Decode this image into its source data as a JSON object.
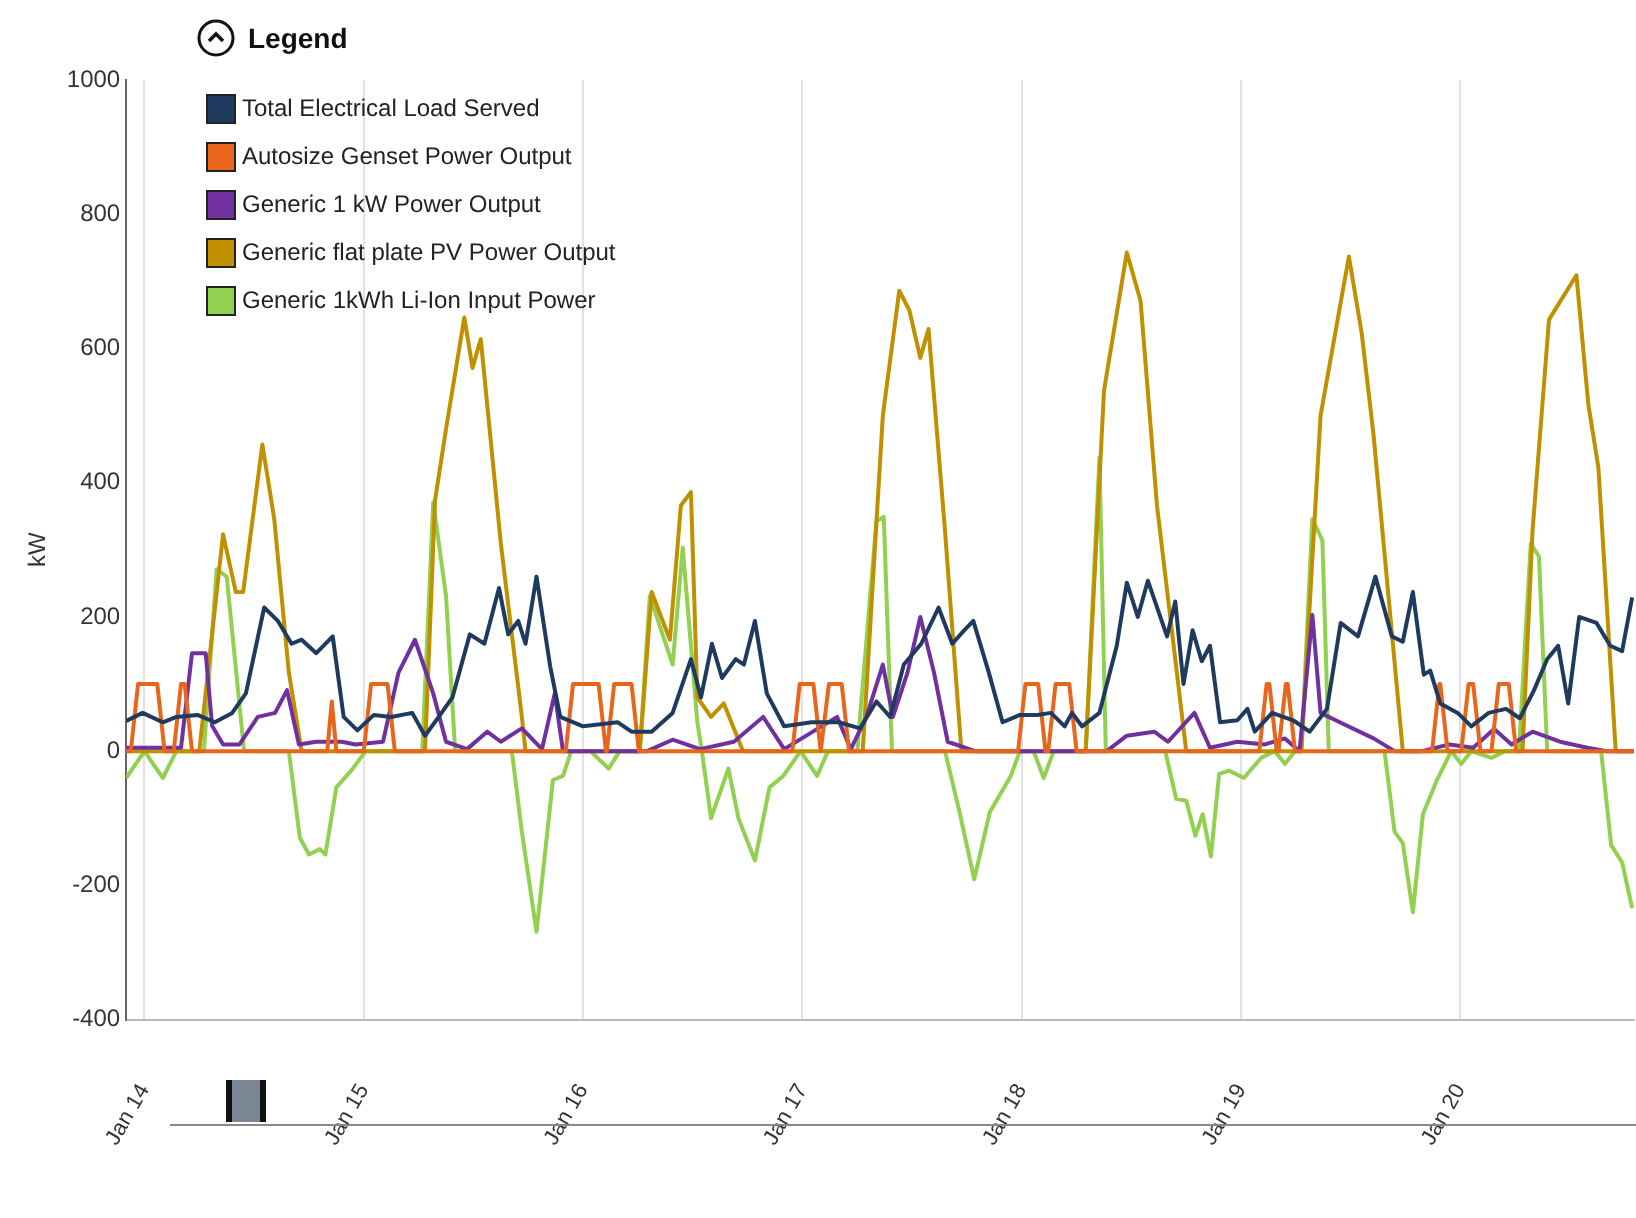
{
  "chart_data": {
    "type": "line",
    "ylabel": "kW",
    "legend_title": "Legend",
    "legend": "top left",
    "grid": "x",
    "marker": "none",
    "line_style": "solid",
    "xlim": [
      "--01-13T22:00",
      "--01-20T19:00"
    ],
    "ylim": [
      -400,
      1000
    ],
    "yticks": [
      -400,
      -200,
      0,
      200,
      400,
      600,
      800,
      1000
    ],
    "xticks": [
      {
        "value": "--01-14",
        "label": "Jan 14"
      },
      {
        "value": "--01-15",
        "label": "Jan 15"
      },
      {
        "value": "--01-16",
        "label": "Jan 16"
      },
      {
        "value": "--01-17",
        "label": "Jan 17"
      },
      {
        "value": "--01-18",
        "label": "Jan 18"
      },
      {
        "value": "--01-19",
        "label": "Jan 19"
      },
      {
        "value": "--01-20",
        "label": "Jan 20"
      }
    ],
    "series": [
      {
        "name": "Total Electrical Load Served",
        "color": "#1f3a5f",
        "x": [
          "--01-13T22:00",
          "--01-13T23:48",
          "--01-14T02:00",
          "--01-14T03:30",
          "--01-14T05:48",
          "--01-14T07:42",
          "--01-14T09:36",
          "--01-14T11:06",
          "--01-14T13:06",
          "--01-14T14:36",
          "--01-14T16:06",
          "--01-14T17:12",
          "--01-14T18:48",
          "--01-14T20:36",
          "--01-14T21:48",
          "--01-14T23:18",
          "--01-15T01:06",
          "--01-15T03:00",
          "--01-15T05:18",
          "--01-15T06:42",
          "--01-15T08:12",
          "--01-15T09:42",
          "--01-15T11:36",
          "--01-15T13:12",
          "--01-15T14:48",
          "--01-15T15:48",
          "--01-15T16:54",
          "--01-15T17:42",
          "--01-15T18:54",
          "--01-15T20:24",
          "--01-15T21:30",
          "--01-16T00:00",
          "--01-16T03:48",
          "--01-16T05:18",
          "--01-16T07:30",
          "--01-16T09:48",
          "--01-16T11:48",
          "--01-16T12:54",
          "--01-16T14:06",
          "--01-16T15:12",
          "--01-16T16:42",
          "--01-16T17:36",
          "--01-16T18:48",
          "--01-16T20:06",
          "--01-16T22:00",
          "--01-17T01:00",
          "--01-17T04:00",
          "--01-17T06:18",
          "--01-17T08:06",
          "--01-17T09:36",
          "--01-17T11:06",
          "--01-17T13:00",
          "--01-17T14:54",
          "--01-17T16:24",
          "--01-17T17:42",
          "--01-17T18:42",
          "--01-17T20:24",
          "--01-17T21:54",
          "--01-17T23:48",
          "--01-18T01:42",
          "--01-18T03:12",
          "--01-18T04:42",
          "--01-18T05:30",
          "--01-18T06:36",
          "--01-18T08:30",
          "--01-18T10:24",
          "--01-18T11:30",
          "--01-18T12:42",
          "--01-18T13:48",
          "--01-18T15:54",
          "--01-18T16:48",
          "--01-18T17:42",
          "--01-18T18:42",
          "--01-18T19:42",
          "--01-18T20:36",
          "--01-18T21:42",
          "--01-18T23:36",
          "--01-19T00:42",
          "--01-19T01:30",
          "--01-19T03:24",
          "--01-19T05:42",
          "--01-19T07:30",
          "--01-19T09:24",
          "--01-19T10:54",
          "--01-19T12:48",
          "--01-19T14:42",
          "--01-19T16:30",
          "--01-19T17:42",
          "--01-19T18:48",
          "--01-19T20:00",
          "--01-19T20:42",
          "--01-19T21:48",
          "--01-19T23:42",
          "--01-20T01:12",
          "--01-20T03:06",
          "--01-20T05:00",
          "--01-20T06:30",
          "--01-20T08:00",
          "--01-20T09:30",
          "--01-20T10:42",
          "--01-20T11:48",
          "--01-20T13:00",
          "--01-20T14:54",
          "--01-20T16:24",
          "--01-20T17:42",
          "--01-20T18:48"
        ],
        "values": [
          45,
          57,
          43,
          51,
          54,
          43,
          57,
          86,
          214,
          194,
          160,
          166,
          146,
          171,
          51,
          31,
          54,
          51,
          57,
          23,
          51,
          80,
          174,
          160,
          243,
          174,
          194,
          160,
          260,
          126,
          51,
          37,
          43,
          29,
          29,
          57,
          137,
          80,
          160,
          109,
          137,
          129,
          194,
          86,
          37,
          43,
          43,
          34,
          74,
          51,
          129,
          160,
          214,
          160,
          180,
          194,
          117,
          43,
          54,
          54,
          57,
          37,
          57,
          37,
          57,
          157,
          251,
          200,
          254,
          171,
          223,
          100,
          180,
          134,
          157,
          43,
          46,
          63,
          29,
          57,
          46,
          29,
          63,
          191,
          171,
          260,
          171,
          163,
          237,
          114,
          120,
          71,
          57,
          37,
          57,
          63,
          49,
          89,
          137,
          157,
          71,
          200,
          191,
          157,
          149,
          229
        ]
      },
      {
        "name": "Autosize Genset Power Output",
        "color": "#e8661c",
        "x": [
          "--01-13T22:00",
          "--01-13T22:30",
          "--01-13T23:18",
          "--01-14T01:24",
          "--01-14T02:12",
          "--01-14T03:12",
          "--01-14T04:00",
          "--01-14T04:24",
          "--01-14T05:12",
          "--01-14T20:00",
          "--01-14T20:30",
          "--01-14T21:00",
          "--01-15T00:00",
          "--01-15T00:48",
          "--01-15T02:36",
          "--01-15T03:24",
          "--01-15T22:06",
          "--01-15T22:54",
          "--01-16T01:42",
          "--01-16T02:30",
          "--01-16T02:36",
          "--01-16T03:24",
          "--01-16T05:18",
          "--01-16T06:06",
          "--01-16T22:54",
          "--01-16T23:42",
          "--01-17T01:12",
          "--01-17T02:00",
          "--01-17T02:06",
          "--01-17T02:54",
          "--01-17T04:18",
          "--01-17T05:06",
          "--01-17T23:36",
          "--01-18T00:24",
          "--01-18T01:48",
          "--01-18T02:36",
          "--01-18T02:54",
          "--01-18T03:42",
          "--01-18T05:12",
          "--01-18T06:00",
          "--01-19T02:00",
          "--01-19T02:48",
          "--01-19T03:06",
          "--01-19T03:54",
          "--01-19T04:06",
          "--01-19T04:54",
          "--01-19T05:06",
          "--01-19T05:54",
          "--01-19T20:54",
          "--01-19T21:42",
          "--01-19T21:48",
          "--01-19T22:36",
          "--01-20T00:06",
          "--01-20T00:54",
          "--01-20T01:24",
          "--01-20T02:12",
          "--01-20T03:24",
          "--01-20T04:12",
          "--01-20T05:18",
          "--01-20T06:06",
          "--01-20T19:00"
        ],
        "values": [
          0,
          0,
          100,
          100,
          0,
          0,
          100,
          100,
          0,
          0,
          74,
          0,
          0,
          100,
          100,
          0,
          0,
          100,
          100,
          0,
          0,
          100,
          100,
          0,
          0,
          100,
          100,
          0,
          0,
          100,
          100,
          0,
          0,
          100,
          100,
          0,
          0,
          100,
          100,
          0,
          0,
          100,
          100,
          0,
          0,
          100,
          100,
          0,
          0,
          100,
          100,
          0,
          0,
          100,
          100,
          0,
          0,
          100,
          100,
          0,
          0
        ]
      },
      {
        "name": "Generic 1 kW Power Output",
        "color": "#7030a0",
        "x": [
          "--01-13T22:00",
          "--01-14T04:00",
          "--01-14T05:12",
          "--01-14T06:42",
          "--01-14T07:24",
          "--01-14T08:36",
          "--01-14T10:24",
          "--01-14T12:24",
          "--01-14T14:18",
          "--01-14T15:36",
          "--01-14T16:54",
          "--01-14T18:48",
          "--01-14T21:36",
          "--01-14T23:06",
          "--01-15T02:06",
          "--01-15T03:48",
          "--01-15T05:36",
          "--01-15T07:36",
          "--01-15T09:00",
          "--01-15T11:18",
          "--01-15T13:30",
          "--01-15T15:00",
          "--01-15T17:18",
          "--01-15T19:30",
          "--01-15T20:54",
          "--01-15T21:48",
          "--01-16T07:00",
          "--01-16T09:48",
          "--01-16T12:48",
          "--01-16T16:30",
          "--01-16T19:42",
          "--01-16T22:00",
          "--01-17T03:48",
          "--01-17T05:18",
          "--01-17T07:00",
          "--01-17T08:48",
          "--01-17T09:54",
          "--01-17T11:30",
          "--01-17T12:54",
          "--01-17T14:24",
          "--01-17T15:54",
          "--01-17T18:54",
          "--01-18T09:18",
          "--01-18T11:30",
          "--01-18T14:30",
          "--01-18T16:00",
          "--01-18T18:54",
          "--01-18T20:36",
          "--01-18T23:36",
          "--01-19T02:36",
          "--01-19T04:48",
          "--01-19T06:24",
          "--01-19T07:48",
          "--01-19T08:42",
          "--01-19T10:48",
          "--01-19T14:30",
          "--01-19T16:48",
          "--01-19T19:48",
          "--01-19T22:48",
          "--01-20T01:24",
          "--01-20T03:42",
          "--01-20T05:36",
          "--01-20T07:54",
          "--01-20T10:54",
          "--01-20T13:54",
          "--01-20T16:00",
          "--01-20T19:00"
        ],
        "values": [
          5,
          5,
          146,
          146,
          38,
          10,
          10,
          51,
          57,
          91,
          10,
          14,
          14,
          10,
          14,
          117,
          166,
          86,
          14,
          3,
          29,
          14,
          34,
          3,
          86,
          0,
          0,
          17,
          3,
          14,
          51,
          3,
          51,
          3,
          51,
          129,
          51,
          117,
          200,
          117,
          14,
          0,
          0,
          23,
          29,
          14,
          57,
          5,
          14,
          10,
          19,
          0,
          203,
          57,
          43,
          19,
          0,
          0,
          10,
          5,
          33,
          10,
          29,
          14,
          5,
          0,
          0
        ]
      },
      {
        "name": "Generic flat plate PV Power Output",
        "color": "#c09000",
        "x": [
          "--01-13T22:00",
          "--01-14T06:00",
          "--01-14T08:36",
          "--01-14T10:00",
          "--01-14T10:48",
          "--01-14T12:54",
          "--01-14T14:12",
          "--01-14T15:48",
          "--01-14T17:12",
          "--01-15T06:42",
          "--01-15T07:48",
          "--01-15T09:00",
          "--01-15T11:00",
          "--01-15T11:54",
          "--01-15T12:48",
          "--01-15T15:00",
          "--01-15T17:18",
          "--01-15T17:42",
          "--01-16T06:12",
          "--01-16T07:30",
          "--01-16T09:30",
          "--01-16T10:42",
          "--01-16T11:48",
          "--01-16T12:30",
          "--01-16T14:00",
          "--01-16T15:24",
          "--01-16T17:30",
          "--01-17T06:36",
          "--01-17T08:48",
          "--01-17T10:36",
          "--01-17T11:42",
          "--01-17T12:54",
          "--01-17T13:48",
          "--01-17T15:36",
          "--01-17T17:24",
          "--01-18T07:00",
          "--01-18T09:00",
          "--01-18T11:30",
          "--01-18T13:00",
          "--01-18T14:48",
          "--01-18T18:00",
          "--01-19T06:36",
          "--01-19T08:42",
          "--01-19T11:48",
          "--01-19T13:12",
          "--01-19T14:30",
          "--01-19T17:42",
          "--01-20T06:48",
          "--01-20T07:54",
          "--01-20T09:42",
          "--01-20T12:42",
          "--01-20T14:00",
          "--01-20T15:06",
          "--01-20T17:00",
          "--01-20T19:00"
        ],
        "values": [
          0,
          0,
          323,
          237,
          237,
          457,
          346,
          117,
          0,
          0,
          374,
          480,
          646,
          571,
          614,
          309,
          51,
          0,
          0,
          237,
          166,
          366,
          386,
          80,
          51,
          71,
          0,
          0,
          500,
          686,
          657,
          586,
          629,
          329,
          0,
          0,
          537,
          743,
          671,
          366,
          0,
          0,
          500,
          737,
          623,
          471,
          0,
          0,
          329,
          643,
          709,
          517,
          423,
          0,
          0
        ]
      },
      {
        "name": "Generic 1kWh Li-Ion Input Power",
        "color": "#92d050",
        "x": [
          "--01-13T22:00",
          "--01-14T00:00",
          "--01-14T02:00",
          "--01-14T03:30",
          "--01-14T06:30",
          "--01-14T07:54",
          "--01-14T09:00",
          "--01-14T10:54",
          "--01-14T15:48",
          "--01-14T17:00",
          "--01-14T18:00",
          "--01-14T19:12",
          "--01-14T19:48",
          "--01-14T21:00",
          "--01-14T22:48",
          "--01-15T00:12",
          "--01-15T06:24",
          "--01-15T07:36",
          "--01-15T09:00",
          "--01-15T10:00",
          "--01-15T16:12",
          "--01-15T17:18",
          "--01-15T18:54",
          "--01-15T20:42",
          "--01-15T21:48",
          "--01-15T22:42",
          "--01-16T00:48",
          "--01-16T02:48",
          "--01-16T04:00",
          "--01-16T06:12",
          "--01-16T07:18",
          "--01-16T09:48",
          "--01-16T10:54",
          "--01-16T12:30",
          "--01-16T13:00",
          "--01-16T14:00",
          "--01-16T15:54",
          "--01-16T17:00",
          "--01-16T18:48",
          "--01-16T20:24",
          "--01-16T21:54",
          "--01-16T23:48",
          "--01-17T01:36",
          "--01-17T02:48",
          "--01-17T06:00",
          "--01-17T08:06",
          "--01-17T08:54",
          "--01-17T09:48",
          "--01-17T15:36",
          "--01-17T17:12",
          "--01-17T18:48",
          "--01-17T20:30",
          "--01-17T22:48",
          "--01-17T23:48",
          "--01-18T01:18",
          "--01-18T02:24",
          "--01-18T03:30",
          "--01-18T07:00",
          "--01-18T08:30",
          "--01-18T09:12",
          "--01-18T15:42",
          "--01-18T16:54",
          "--01-18T18:00",
          "--01-18T19:00",
          "--01-18T19:48",
          "--01-18T20:42",
          "--01-18T21:36",
          "--01-18T22:42",
          "--01-19T00:18",
          "--01-19T02:12",
          "--01-19T03:42",
          "--01-19T04:48",
          "--01-19T05:54",
          "--01-19T06:36",
          "--01-19T07:48",
          "--01-19T08:54",
          "--01-19T09:36",
          "--01-19T15:42",
          "--01-19T16:48",
          "--01-19T17:42",
          "--01-19T18:48",
          "--01-19T19:54",
          "--01-19T21:24",
          "--01-19T23:00",
          "--01-20T00:06",
          "--01-20T01:12",
          "--01-20T03:24",
          "--01-20T04:54",
          "--01-20T06:24",
          "--01-20T07:42",
          "--01-20T08:36",
          "--01-20T09:30",
          "--01-20T15:24",
          "--01-20T16:30",
          "--01-20T17:42",
          "--01-20T18:48"
        ],
        "values": [
          -40,
          0,
          -40,
          0,
          0,
          271,
          260,
          0,
          0,
          -129,
          -154,
          -146,
          -154,
          -54,
          -26,
          0,
          0,
          371,
          231,
          0,
          0,
          -120,
          -269,
          -43,
          -37,
          0,
          0,
          -26,
          0,
          0,
          231,
          129,
          303,
          43,
          0,
          -100,
          -26,
          -100,
          -163,
          -54,
          -37,
          0,
          -37,
          0,
          0,
          343,
          349,
          0,
          0,
          -91,
          -191,
          -91,
          -37,
          0,
          0,
          -40,
          0,
          0,
          437,
          0,
          0,
          -71,
          -74,
          -126,
          -94,
          -157,
          -34,
          -29,
          -40,
          -10,
          0,
          -19,
          0,
          0,
          346,
          314,
          0,
          0,
          -120,
          -137,
          -240,
          -94,
          -44,
          0,
          -19,
          0,
          -10,
          0,
          0,
          309,
          290,
          0,
          0,
          -140,
          -166,
          -234
        ]
      }
    ]
  }
}
